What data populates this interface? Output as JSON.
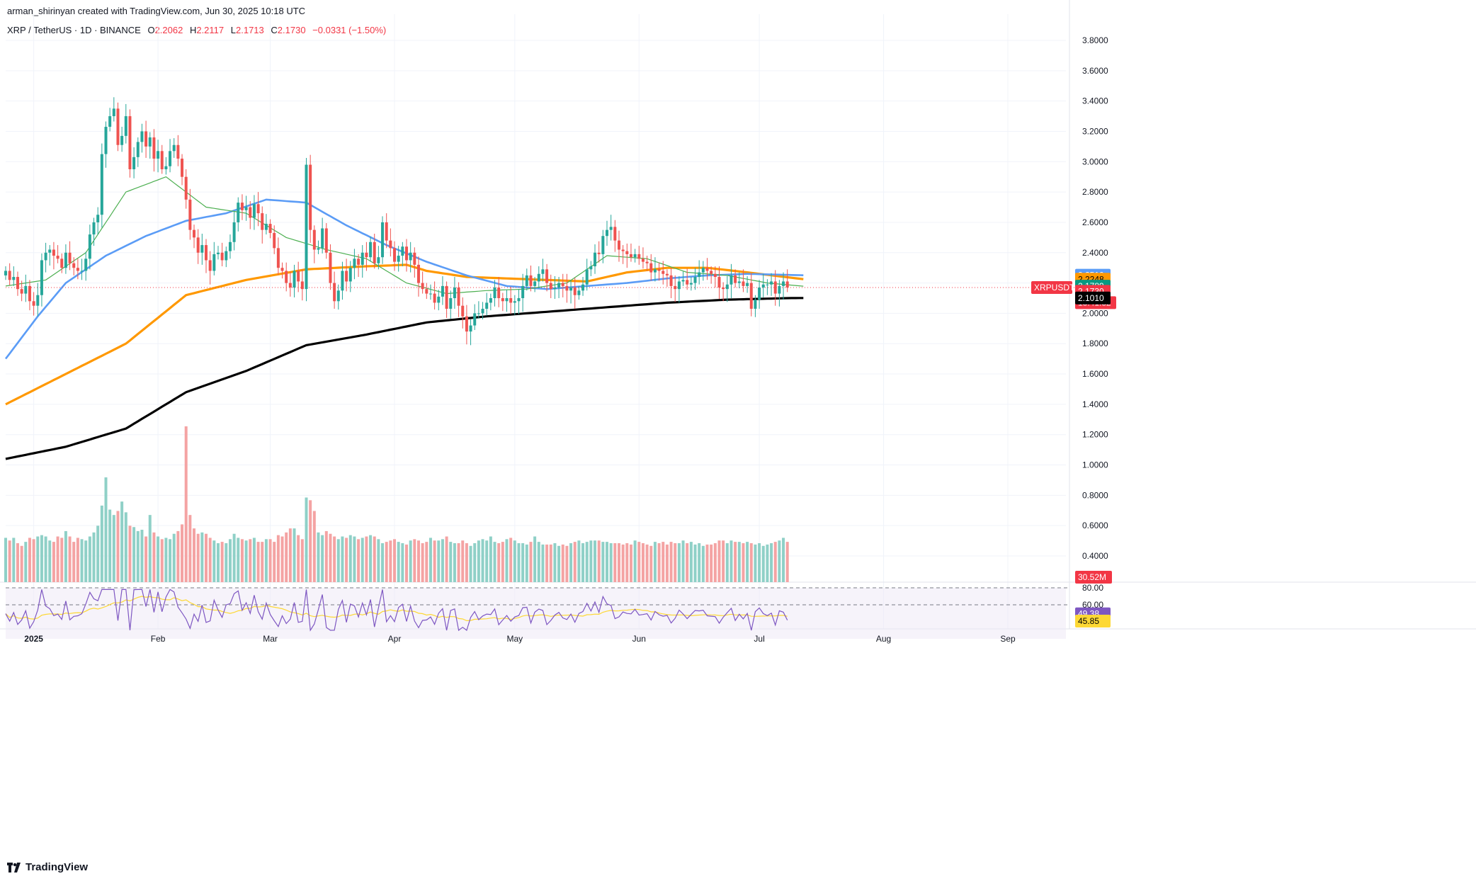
{
  "header": {
    "credit": "arman_shirinyan created with TradingView.com, Jun 30, 2025 10:18 UTC",
    "symbol": "XRP / TetherUS · 1D · BINANCE",
    "o_label": "O",
    "o_value": "2.2062",
    "h_label": "H",
    "h_value": "2.2117",
    "l_label": "L",
    "l_value": "2.1713",
    "c_label": "C",
    "c_value": "2.1730",
    "change": "−0.0331 (−1.50%)"
  },
  "footer": {
    "brand": "TradingView"
  },
  "colors": {
    "up": "#26a69a",
    "down": "#ef5350",
    "vol_up": "#8fd0c7",
    "vol_down": "#f4a3a3",
    "ma_blue": "#5b9cf6",
    "ma_orange": "#ff9800",
    "ma_black": "#000000",
    "ma_green": "#4caf50",
    "rsi": "#7e57c2",
    "rsi_ma": "#fdd835",
    "rsi_bg": "#ede7f6"
  },
  "chart_data": {
    "type": "candlestick",
    "symbol": "XRPUSDT",
    "y_ticks": [
      3.8,
      3.6,
      3.4,
      3.2,
      3.0,
      2.8,
      2.6,
      2.4,
      2.2,
      2.0,
      1.8,
      1.6,
      1.4,
      1.2,
      1.0,
      0.8,
      0.6,
      0.4
    ],
    "y_tick_labels": [
      "3.8000",
      "3.6000",
      "3.4000",
      "3.2000",
      "3.0000",
      "2.8000",
      "2.6000",
      "2.4000",
      "2.2000",
      "2.0000",
      "1.8000",
      "1.6000",
      "1.4000",
      "1.2000",
      "1.0000",
      "0.8000",
      "0.6000",
      "0.4000"
    ],
    "ylim": [
      0.27,
      3.92
    ],
    "x_labels": [
      {
        "label": "2025",
        "date": "2025-01-01"
      },
      {
        "label": "Feb",
        "date": "2025-02-01"
      },
      {
        "label": "Mar",
        "date": "2025-03-01"
      },
      {
        "label": "Apr",
        "date": "2025-04-01"
      },
      {
        "label": "May",
        "date": "2025-05-01"
      },
      {
        "label": "Jun",
        "date": "2025-06-01"
      },
      {
        "label": "Jul",
        "date": "2025-07-01"
      },
      {
        "label": "Aug",
        "date": "2025-08-01"
      },
      {
        "label": "Sep",
        "date": "2025-09-01"
      }
    ],
    "x_start": "2024-12-25",
    "closes": [
      2.28,
      2.22,
      2.24,
      2.16,
      2.13,
      2.18,
      2.08,
      2.05,
      2.12,
      2.35,
      2.4,
      2.42,
      2.38,
      2.36,
      2.3,
      2.4,
      2.33,
      2.3,
      2.28,
      2.28,
      2.36,
      2.52,
      2.6,
      2.65,
      3.05,
      3.23,
      3.3,
      3.35,
      3.11,
      3.17,
      3.3,
      2.95,
      3.03,
      3.13,
      3.2,
      3.1,
      3.16,
      3.02,
      3.07,
      2.95,
      2.97,
      3.07,
      3.11,
      3.02,
      2.9,
      2.75,
      2.55,
      2.5,
      2.4,
      2.45,
      2.35,
      2.28,
      2.39,
      2.4,
      2.35,
      2.41,
      2.47,
      2.6,
      2.73,
      2.68,
      2.7,
      2.63,
      2.72,
      2.66,
      2.55,
      2.59,
      2.53,
      2.43,
      2.3,
      2.28,
      2.2,
      2.17,
      2.28,
      2.21,
      2.16,
      2.98,
      2.55,
      2.42,
      2.43,
      2.56,
      2.4,
      2.2,
      2.08,
      2.15,
      2.28,
      2.21,
      2.3,
      2.36,
      2.32,
      2.4,
      2.37,
      2.47,
      2.33,
      2.37,
      2.6,
      2.48,
      2.43,
      2.34,
      2.38,
      2.44,
      2.35,
      2.4,
      2.32,
      2.2,
      2.16,
      2.13,
      2.13,
      2.07,
      2.11,
      2.18,
      2.03,
      2.1,
      2.17,
      2.05,
      1.98,
      1.88,
      1.92,
      2.0,
      2.0,
      2.03,
      2.07,
      2.1,
      2.17,
      2.1,
      2.08,
      2.1,
      2.07,
      2.08,
      2.1,
      2.18,
      2.25,
      2.18,
      2.21,
      2.26,
      2.29,
      2.2,
      2.16,
      2.17,
      2.2,
      2.18,
      2.15,
      2.17,
      2.12,
      2.15,
      2.19,
      2.29,
      2.31,
      2.4,
      2.39,
      2.51,
      2.55,
      2.57,
      2.48,
      2.42,
      2.41,
      2.39,
      2.37,
      2.39,
      2.36,
      2.34,
      2.33,
      2.27,
      2.29,
      2.28,
      2.26,
      2.25,
      2.18,
      2.16,
      2.21,
      2.22,
      2.19,
      2.2,
      2.24,
      2.27,
      2.3,
      2.28,
      2.26,
      2.24,
      2.17,
      2.16,
      2.19,
      2.25,
      2.2,
      2.21,
      2.18,
      2.2,
      2.03,
      2.09,
      2.17,
      2.19,
      2.19,
      2.21,
      2.13,
      2.18,
      2.21,
      2.17
    ],
    "volumes": [
      0.33,
      0.31,
      0.33,
      0.29,
      0.27,
      0.3,
      0.33,
      0.32,
      0.34,
      0.35,
      0.34,
      0.31,
      0.3,
      0.34,
      0.33,
      0.38,
      0.34,
      0.3,
      0.33,
      0.32,
      0.31,
      0.34,
      0.37,
      0.42,
      0.57,
      0.78,
      0.54,
      0.5,
      0.53,
      0.6,
      0.52,
      0.42,
      0.41,
      0.38,
      0.39,
      0.34,
      0.5,
      0.37,
      0.34,
      0.32,
      0.33,
      0.32,
      0.36,
      0.38,
      0.43,
      1.16,
      0.5,
      0.4,
      0.36,
      0.37,
      0.36,
      0.33,
      0.31,
      0.29,
      0.3,
      0.29,
      0.32,
      0.36,
      0.33,
      0.32,
      0.31,
      0.32,
      0.33,
      0.3,
      0.3,
      0.32,
      0.32,
      0.3,
      0.35,
      0.34,
      0.37,
      0.4,
      0.4,
      0.35,
      0.32,
      0.63,
      0.61,
      0.53,
      0.37,
      0.35,
      0.38,
      0.36,
      0.34,
      0.32,
      0.34,
      0.33,
      0.35,
      0.34,
      0.32,
      0.33,
      0.34,
      0.35,
      0.34,
      0.32,
      0.29,
      0.3,
      0.31,
      0.32,
      0.3,
      0.29,
      0.28,
      0.31,
      0.32,
      0.31,
      0.29,
      0.3,
      0.33,
      0.31,
      0.31,
      0.32,
      0.34,
      0.3,
      0.29,
      0.29,
      0.31,
      0.29,
      0.27,
      0.29,
      0.31,
      0.32,
      0.31,
      0.34,
      0.3,
      0.29,
      0.3,
      0.32,
      0.33,
      0.31,
      0.29,
      0.29,
      0.28,
      0.3,
      0.34,
      0.3,
      0.28,
      0.28,
      0.28,
      0.29,
      0.27,
      0.28,
      0.27,
      0.29,
      0.3,
      0.31,
      0.29,
      0.3,
      0.31,
      0.31,
      0.31,
      0.3,
      0.3,
      0.29,
      0.29,
      0.29,
      0.28,
      0.29,
      0.28,
      0.31,
      0.3,
      0.29,
      0.28,
      0.27,
      0.3,
      0.29,
      0.3,
      0.28,
      0.3,
      0.29,
      0.29,
      0.31,
      0.29,
      0.3,
      0.28,
      0.29,
      0.27,
      0.28,
      0.28,
      0.29,
      0.31,
      0.31,
      0.29,
      0.31,
      0.3,
      0.3,
      0.29,
      0.3,
      0.29,
      0.28,
      0.29,
      0.27,
      0.28,
      0.29,
      0.3,
      0.31,
      0.33,
      0.3,
      0.29,
      0.31,
      0.29,
      0.3,
      0.3
    ],
    "series": [
      {
        "color_key": "ma_black",
        "value": 2.101,
        "knots": [
          [
            0,
            1.04
          ],
          [
            15,
            1.12
          ],
          [
            30,
            1.24
          ],
          [
            45,
            1.48
          ],
          [
            60,
            1.62
          ],
          [
            75,
            1.79
          ],
          [
            90,
            1.86
          ],
          [
            105,
            1.94
          ],
          [
            120,
            1.98
          ],
          [
            135,
            2.01
          ],
          [
            150,
            2.04
          ],
          [
            165,
            2.07
          ],
          [
            180,
            2.09
          ],
          [
            195,
            2.1
          ],
          [
            199,
            2.101
          ]
        ]
      },
      {
        "color_key": "ma_orange",
        "value": 2.2248,
        "knots": [
          [
            0,
            1.4
          ],
          [
            15,
            1.6
          ],
          [
            30,
            1.8
          ],
          [
            45,
            2.12
          ],
          [
            60,
            2.22
          ],
          [
            75,
            2.29
          ],
          [
            90,
            2.31
          ],
          [
            100,
            2.32
          ],
          [
            105,
            2.28
          ],
          [
            115,
            2.24
          ],
          [
            125,
            2.23
          ],
          [
            135,
            2.22
          ],
          [
            145,
            2.21
          ],
          [
            155,
            2.27
          ],
          [
            165,
            2.3
          ],
          [
            175,
            2.3
          ],
          [
            185,
            2.27
          ],
          [
            199,
            2.225
          ]
        ]
      },
      {
        "color_key": "ma_blue",
        "value": 2.251,
        "knots": [
          [
            0,
            1.7
          ],
          [
            8,
            1.98
          ],
          [
            15,
            2.2
          ],
          [
            25,
            2.38
          ],
          [
            35,
            2.51
          ],
          [
            45,
            2.61
          ],
          [
            55,
            2.66
          ],
          [
            65,
            2.75
          ],
          [
            75,
            2.73
          ],
          [
            85,
            2.58
          ],
          [
            95,
            2.45
          ],
          [
            105,
            2.34
          ],
          [
            115,
            2.25
          ],
          [
            125,
            2.18
          ],
          [
            135,
            2.16
          ],
          [
            145,
            2.18
          ],
          [
            155,
            2.2
          ],
          [
            165,
            2.23
          ],
          [
            175,
            2.25
          ],
          [
            185,
            2.26
          ],
          [
            199,
            2.251
          ]
        ]
      },
      {
        "color_key": "ma_green",
        "value": 2.1789,
        "knots": [
          [
            0,
            2.18
          ],
          [
            10,
            2.22
          ],
          [
            20,
            2.4
          ],
          [
            30,
            2.8
          ],
          [
            40,
            2.9
          ],
          [
            50,
            2.7
          ],
          [
            60,
            2.66
          ],
          [
            70,
            2.5
          ],
          [
            80,
            2.42
          ],
          [
            90,
            2.36
          ],
          [
            100,
            2.2
          ],
          [
            110,
            2.13
          ],
          [
            120,
            2.15
          ],
          [
            130,
            2.16
          ],
          [
            140,
            2.2
          ],
          [
            150,
            2.38
          ],
          [
            160,
            2.36
          ],
          [
            170,
            2.27
          ],
          [
            180,
            2.25
          ],
          [
            190,
            2.2
          ],
          [
            199,
            2.179
          ]
        ]
      }
    ],
    "rsi": {
      "value": 49.38,
      "ma_value": 45.85,
      "levels": [
        80,
        60
      ]
    },
    "tags": {
      "symbol": "XRPUSDT",
      "last": "2.1730",
      "countdown": "13:41:32",
      "blue": "2.2510",
      "orange": "2.2248",
      "green": "2.1789",
      "black": "2.1010",
      "volume": "30.52M",
      "rsi_top": "80.00",
      "rsi_mid": "60.00",
      "rsi": "49.38",
      "rsi_ma": "45.85"
    }
  }
}
